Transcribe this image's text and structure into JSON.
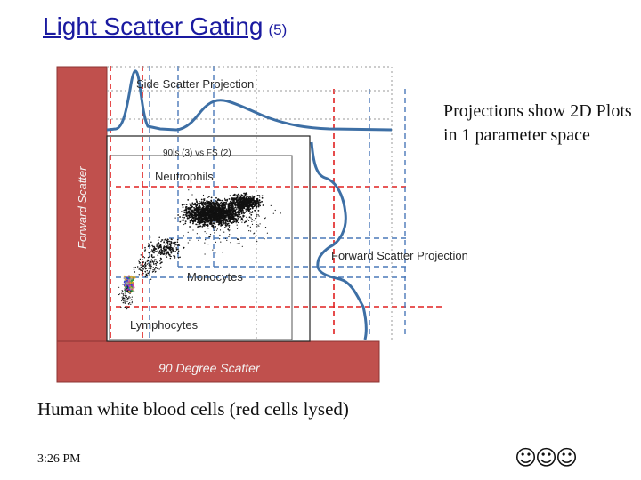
{
  "slide": {
    "title": "Light Scatter Gating",
    "title_suffix": "(5)",
    "note": "Projections show 2D Plots in 1 parameter space",
    "caption": "Human white blood cells (red cells lysed)",
    "time": "3:26 PM",
    "footer_symbols": "☺☺☺"
  },
  "diagram": {
    "side_scatter_projection": "Side Scatter Projection",
    "forward_scatter_projection": "Forward Scatter Projection",
    "y_axis_label": "Forward Scatter",
    "x_axis_label": "90 Degree Scatter",
    "plot_header": "90ls (3) vs FS (2)",
    "populations": {
      "neutrophils": "Neutrophils",
      "monocytes": "Monocytes",
      "lymphocytes": "Lymphocytes"
    },
    "colors": {
      "axis_band": "#c0504d",
      "band_border": "#8c3533",
      "curve": "#3d6fa5",
      "red_guide": "#e02020",
      "blue_guide": "#4a78b8",
      "neutrophil_dots": "#111111"
    }
  }
}
